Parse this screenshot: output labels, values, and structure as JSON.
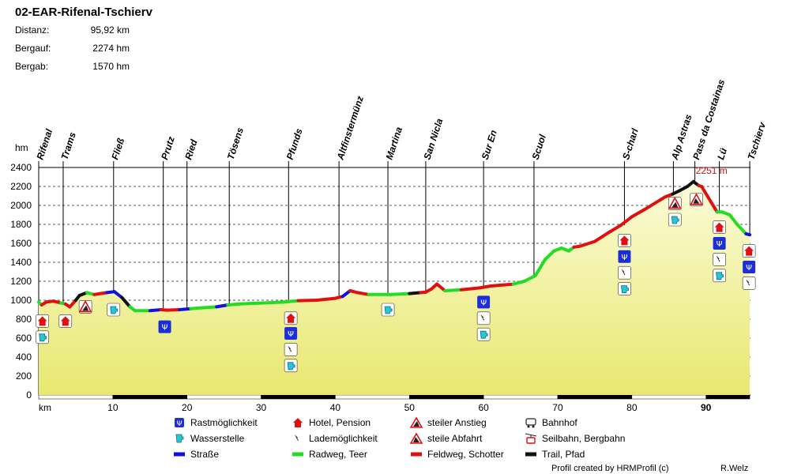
{
  "header": {
    "title": "02-EAR-Rifenal-Tschierv",
    "stats": [
      {
        "label": "Distanz:",
        "value": "95,92 km"
      },
      {
        "label": "Bergauf:",
        "value": "2274 hm"
      },
      {
        "label": "Bergab:",
        "value": "1570 hm"
      }
    ]
  },
  "chart_data": {
    "type": "area",
    "ylabel": "hm",
    "xlabel": "km",
    "xlim": [
      0,
      96
    ],
    "ylim": [
      0,
      2400
    ],
    "yticks": [
      0,
      200,
      400,
      600,
      800,
      1000,
      1200,
      1400,
      1600,
      1800,
      2000,
      2200,
      2400
    ],
    "xticks": [
      10,
      20,
      30,
      40,
      50,
      60,
      70,
      80,
      90
    ],
    "grid": true,
    "max_label": "2251 m",
    "max_point": {
      "x": 88.3,
      "y": 2251
    },
    "profile": [
      [
        0,
        980,
        "blue"
      ],
      [
        0.4,
        950,
        "green"
      ],
      [
        1,
        980,
        "red"
      ],
      [
        2,
        990,
        "red"
      ],
      [
        3,
        970,
        "red"
      ],
      [
        3.6,
        960,
        "green"
      ],
      [
        4.2,
        930,
        "red"
      ],
      [
        5,
        1000,
        "red"
      ],
      [
        5.5,
        1050,
        "black"
      ],
      [
        6.5,
        1080,
        "black"
      ],
      [
        7.5,
        1060,
        "green"
      ],
      [
        8.3,
        1070,
        "red"
      ],
      [
        9.2,
        1080,
        "red"
      ],
      [
        10.2,
        1090,
        "blue"
      ],
      [
        11.2,
        1030,
        "blue"
      ],
      [
        12.3,
        930,
        "black"
      ],
      [
        13,
        890,
        "green"
      ],
      [
        15,
        890,
        "green"
      ],
      [
        16.5,
        900,
        "blue"
      ],
      [
        17.3,
        895,
        "red"
      ],
      [
        19,
        900,
        "red"
      ],
      [
        20.5,
        910,
        "blue"
      ],
      [
        22,
        920,
        "green"
      ],
      [
        24,
        930,
        "green"
      ],
      [
        25.5,
        950,
        "blue"
      ],
      [
        27,
        960,
        "green"
      ],
      [
        30,
        970,
        "green"
      ],
      [
        33,
        980,
        "green"
      ],
      [
        35,
        995,
        "green"
      ],
      [
        37.5,
        1000,
        "red"
      ],
      [
        40,
        1020,
        "red"
      ],
      [
        41,
        1040,
        "red"
      ],
      [
        42,
        1100,
        "blue"
      ],
      [
        43,
        1080,
        "red"
      ],
      [
        44.5,
        1060,
        "red"
      ],
      [
        47.5,
        1060,
        "green"
      ],
      [
        50,
        1070,
        "green"
      ],
      [
        51.5,
        1080,
        "black"
      ],
      [
        52.2,
        1085,
        "red"
      ],
      [
        53,
        1120,
        "red"
      ],
      [
        53.7,
        1170,
        "red"
      ],
      [
        54.8,
        1100,
        "red"
      ],
      [
        57,
        1110,
        "green"
      ],
      [
        59.5,
        1130,
        "red"
      ],
      [
        61,
        1150,
        "red"
      ],
      [
        64,
        1170,
        "red"
      ],
      [
        65.5,
        1200,
        "green"
      ],
      [
        67,
        1260,
        "green"
      ],
      [
        68.3,
        1430,
        "green"
      ],
      [
        69.5,
        1520,
        "green"
      ],
      [
        70.5,
        1550,
        "green"
      ],
      [
        71.5,
        1520,
        "green"
      ],
      [
        72.2,
        1560,
        "green"
      ],
      [
        73,
        1570,
        "red"
      ],
      [
        75,
        1620,
        "red"
      ],
      [
        77,
        1720,
        "red"
      ],
      [
        78.5,
        1790,
        "red"
      ],
      [
        80,
        1880,
        "red"
      ],
      [
        82,
        1970,
        "red"
      ],
      [
        84.5,
        2090,
        "red"
      ],
      [
        85.5,
        2120,
        "red"
      ],
      [
        86.3,
        2150,
        "black"
      ],
      [
        87.5,
        2200,
        "black"
      ],
      [
        88.3,
        2251,
        "black"
      ],
      [
        89,
        2210,
        "black"
      ],
      [
        89.4,
        2200,
        "red"
      ],
      [
        91.5,
        1930,
        "red"
      ],
      [
        92.2,
        1930,
        "green"
      ],
      [
        93.2,
        1900,
        "green"
      ],
      [
        94.2,
        1800,
        "green"
      ],
      [
        95.4,
        1700,
        "green"
      ],
      [
        95.9,
        1690,
        "blue"
      ]
    ],
    "places": [
      {
        "name": "Rifenal",
        "km": 0
      },
      {
        "name": "Trams",
        "km": 3.3
      },
      {
        "name": "Fließ",
        "km": 10.1
      },
      {
        "name": "Prutz",
        "km": 16.8
      },
      {
        "name": "Ried",
        "km": 20
      },
      {
        "name": "Tösens",
        "km": 25.7
      },
      {
        "name": "Pfunds",
        "km": 33.7
      },
      {
        "name": "Altfinstermünz",
        "km": 40.5
      },
      {
        "name": "Martina",
        "km": 47.1
      },
      {
        "name": "San Nicla",
        "km": 52.2
      },
      {
        "name": "Sur En",
        "km": 60
      },
      {
        "name": "Scuol",
        "km": 66.8
      },
      {
        "name": "S-charl",
        "km": 79
      },
      {
        "name": "Alp Astras",
        "km": 85.6
      },
      {
        "name": "Pass da Costainas",
        "km": 88.5
      },
      {
        "name": "Lü",
        "km": 91.8
      },
      {
        "name": "Tschierv",
        "km": 95.9
      }
    ],
    "markers": [
      {
        "km": 0.5,
        "y": 780,
        "icon": "hotel"
      },
      {
        "km": 0.5,
        "y": 610,
        "icon": "water"
      },
      {
        "km": 3.6,
        "y": 780,
        "icon": "hotel"
      },
      {
        "km": 6.3,
        "y": 930,
        "icon": "steep-climb"
      },
      {
        "km": 10.1,
        "y": 900,
        "icon": "water"
      },
      {
        "km": 17,
        "y": 720,
        "icon": "rest"
      },
      {
        "km": 34,
        "y": 810,
        "icon": "hotel"
      },
      {
        "km": 34,
        "y": 650,
        "icon": "rest"
      },
      {
        "km": 34,
        "y": 480,
        "icon": "charging"
      },
      {
        "km": 34,
        "y": 310,
        "icon": "water"
      },
      {
        "km": 47.1,
        "y": 900,
        "icon": "water"
      },
      {
        "km": 60,
        "y": 980,
        "icon": "rest"
      },
      {
        "km": 60,
        "y": 810,
        "icon": "charging"
      },
      {
        "km": 60,
        "y": 640,
        "icon": "water"
      },
      {
        "km": 79,
        "y": 1630,
        "icon": "hotel"
      },
      {
        "km": 79,
        "y": 1460,
        "icon": "rest"
      },
      {
        "km": 79,
        "y": 1290,
        "icon": "charging"
      },
      {
        "km": 79,
        "y": 1120,
        "icon": "water"
      },
      {
        "km": 85.8,
        "y": 2020,
        "icon": "steep-climb"
      },
      {
        "km": 85.8,
        "y": 1850,
        "icon": "water"
      },
      {
        "km": 88.7,
        "y": 2060,
        "icon": "steep-descent"
      },
      {
        "km": 91.8,
        "y": 1770,
        "icon": "hotel"
      },
      {
        "km": 91.8,
        "y": 1600,
        "icon": "rest"
      },
      {
        "km": 91.8,
        "y": 1430,
        "icon": "charging"
      },
      {
        "km": 91.8,
        "y": 1260,
        "icon": "water"
      },
      {
        "km": 95.8,
        "y": 1520,
        "icon": "hotel"
      },
      {
        "km": 95.8,
        "y": 1350,
        "icon": "rest"
      },
      {
        "km": 95.8,
        "y": 1180,
        "icon": "charging"
      }
    ]
  },
  "legend": {
    "col1": [
      {
        "icon": "rest",
        "label": "Rastmöglichkeit"
      },
      {
        "icon": "water",
        "label": "Wasserstelle"
      },
      {
        "icon": "road",
        "label": "Straße"
      }
    ],
    "col2": [
      {
        "icon": "hotel",
        "label": "Hotel, Pension"
      },
      {
        "icon": "charging",
        "label": "Lademöglichkeit"
      },
      {
        "icon": "cycle-path",
        "label": "Radweg, Teer"
      }
    ],
    "col3": [
      {
        "icon": "steep-climb",
        "label": "steiler Anstieg"
      },
      {
        "icon": "steep-descent",
        "label": "steile Abfahrt"
      },
      {
        "icon": "gravel",
        "label": "Feldweg, Schotter"
      }
    ],
    "col4": [
      {
        "icon": "train",
        "label": "Bahnhof"
      },
      {
        "icon": "cable-car",
        "label": "Seilbahn, Bergbahn"
      },
      {
        "icon": "trail",
        "label": "Trail, Pfad"
      }
    ]
  },
  "footer": {
    "credit": "Profil created by HRMProfil (c)",
    "author": "R.Welz"
  },
  "colors": {
    "road": "#1010e0",
    "cycle-path": "#22dd22",
    "gravel": "#e01010",
    "trail": "#111111",
    "fill_top": "#fbfbd8",
    "fill_bottom": "#e8e870",
    "max_label": "#d01010"
  }
}
